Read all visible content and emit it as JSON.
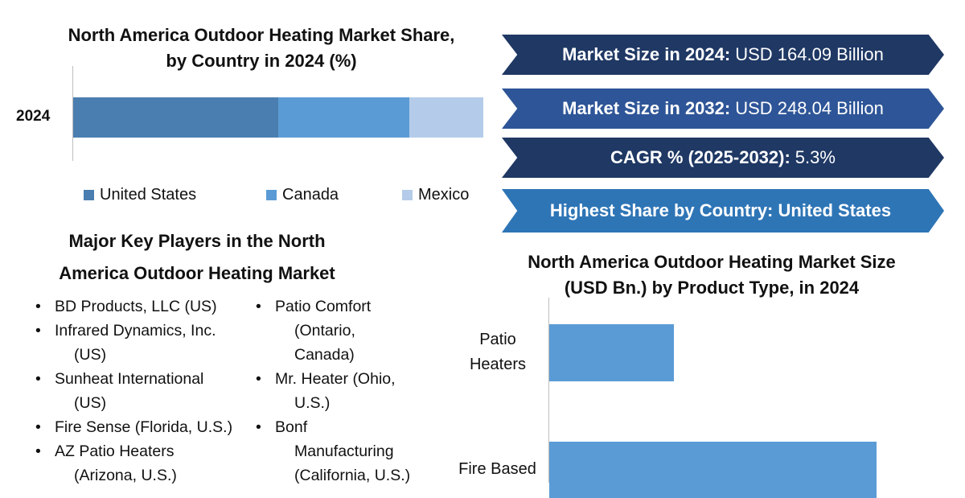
{
  "stacked_chart": {
    "title_line1": "North America Outdoor Heating Market Share,",
    "title_line2": "by Country in 2024 (%)",
    "category": "2024",
    "legend": [
      {
        "label": "United States",
        "color": "#4a7eb0"
      },
      {
        "label": "Canada",
        "color": "#5b9bd5"
      },
      {
        "label": "Mexico",
        "color": "#b4cce9"
      }
    ]
  },
  "key_players": {
    "title_line1": "Major Key Players in the North",
    "title_line2": "America Outdoor Heating Market",
    "column1": [
      [
        "BD Products, LLC (US)"
      ],
      [
        "Infrared Dynamics, Inc.",
        "(US)"
      ],
      [
        "Sunheat International",
        "(US)"
      ],
      [
        "Fire Sense (Florida, U.S.)"
      ],
      [
        "AZ Patio Heaters",
        "(Arizona, U.S.)"
      ]
    ],
    "column2": [
      [
        "Patio Comfort",
        "(Ontario,",
        "Canada)"
      ],
      [
        "Mr. Heater (Ohio,",
        "U.S.)"
      ],
      [
        "Bonf",
        "Manufacturing",
        "(California, U.S.)"
      ]
    ]
  },
  "highlights": [
    {
      "label": "Market Size in 2024:",
      "value": "USD 164.09 Billion",
      "color": "#1f3864"
    },
    {
      "label": "Market Size in 2032:",
      "value": "USD 248.04 Billion",
      "color": "#2e5597"
    },
    {
      "label": "CAGR % (2025-2032):",
      "value": "5.3%",
      "color": "#1f3864"
    },
    {
      "label": "Highest Share by Country: United States",
      "value": "",
      "color": "#2e75b6"
    }
  ],
  "bar_chart": {
    "title_line1": "North America Outdoor Heating Market Size",
    "title_line2": "(USD Bn.) by Product Type, in 2024"
  },
  "chart_data": [
    {
      "type": "bar",
      "orientation": "horizontal",
      "stacked": true,
      "title": "North America Outdoor Heating Market Share, by Country in 2024 (%)",
      "categories": [
        "2024"
      ],
      "series": [
        {
          "name": "United States",
          "values": [
            50
          ],
          "color": "#4a7eb0"
        },
        {
          "name": "Canada",
          "values": [
            32
          ],
          "color": "#5b9bd5"
        },
        {
          "name": "Mexico",
          "values": [
            18
          ],
          "color": "#b4cce9"
        }
      ],
      "xlim": [
        0,
        100
      ],
      "legend": "bottom",
      "grid": false
    },
    {
      "type": "bar",
      "orientation": "horizontal",
      "title": "North America Outdoor Heating Market Size (USD Bn.) by Product Type, in 2024",
      "categories": [
        "Patio Heaters",
        "Fire Based"
      ],
      "values": [
        30,
        79
      ],
      "xlim": [
        0,
        100
      ],
      "color": "#5b9bd5",
      "grid": false
    }
  ]
}
